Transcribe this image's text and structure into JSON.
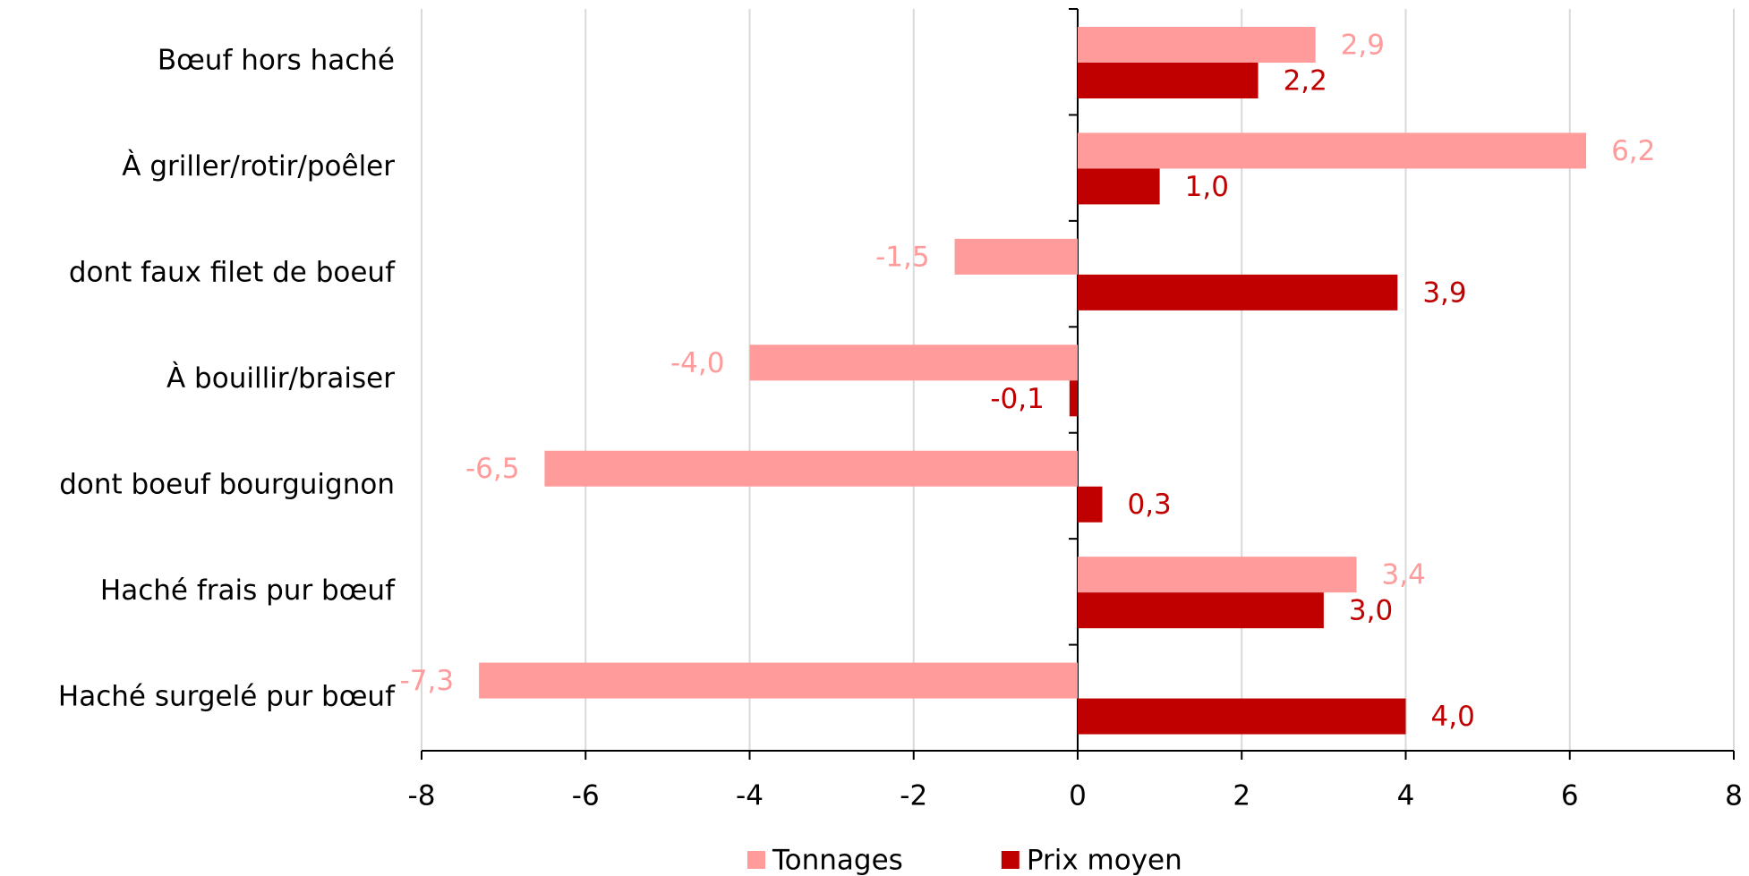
{
  "chart_data": {
    "type": "bar",
    "orientation": "horizontal",
    "categories": [
      "Bœuf hors haché",
      "À griller/rotir/poêler",
      "dont faux filet de boeuf",
      "À bouillir/braiser",
      "dont boeuf bourguignon",
      "Haché frais pur bœuf",
      "Haché surgelé pur bœuf"
    ],
    "series": [
      {
        "name": "Tonnages",
        "color": "#ff9b9b",
        "values": [
          2.9,
          6.2,
          -1.5,
          -4.0,
          -6.5,
          3.4,
          -7.3
        ],
        "value_labels": [
          "2,9",
          "6,2",
          "-1,5",
          "-4,0",
          "-6,5",
          "3,4",
          "-7,3"
        ]
      },
      {
        "name": "Prix moyen",
        "color": "#c00000",
        "values": [
          2.2,
          1.0,
          3.9,
          -0.1,
          0.3,
          3.0,
          4.0
        ],
        "value_labels": [
          "2,2",
          "1,0",
          "3,9",
          "-0,1",
          "0,3",
          "3,0",
          "4,0"
        ]
      }
    ],
    "xlim": [
      -8,
      8
    ],
    "xticks": [
      -8,
      -6,
      -4,
      -2,
      0,
      2,
      4,
      6,
      8
    ],
    "grid": true,
    "legend": "bottom"
  }
}
